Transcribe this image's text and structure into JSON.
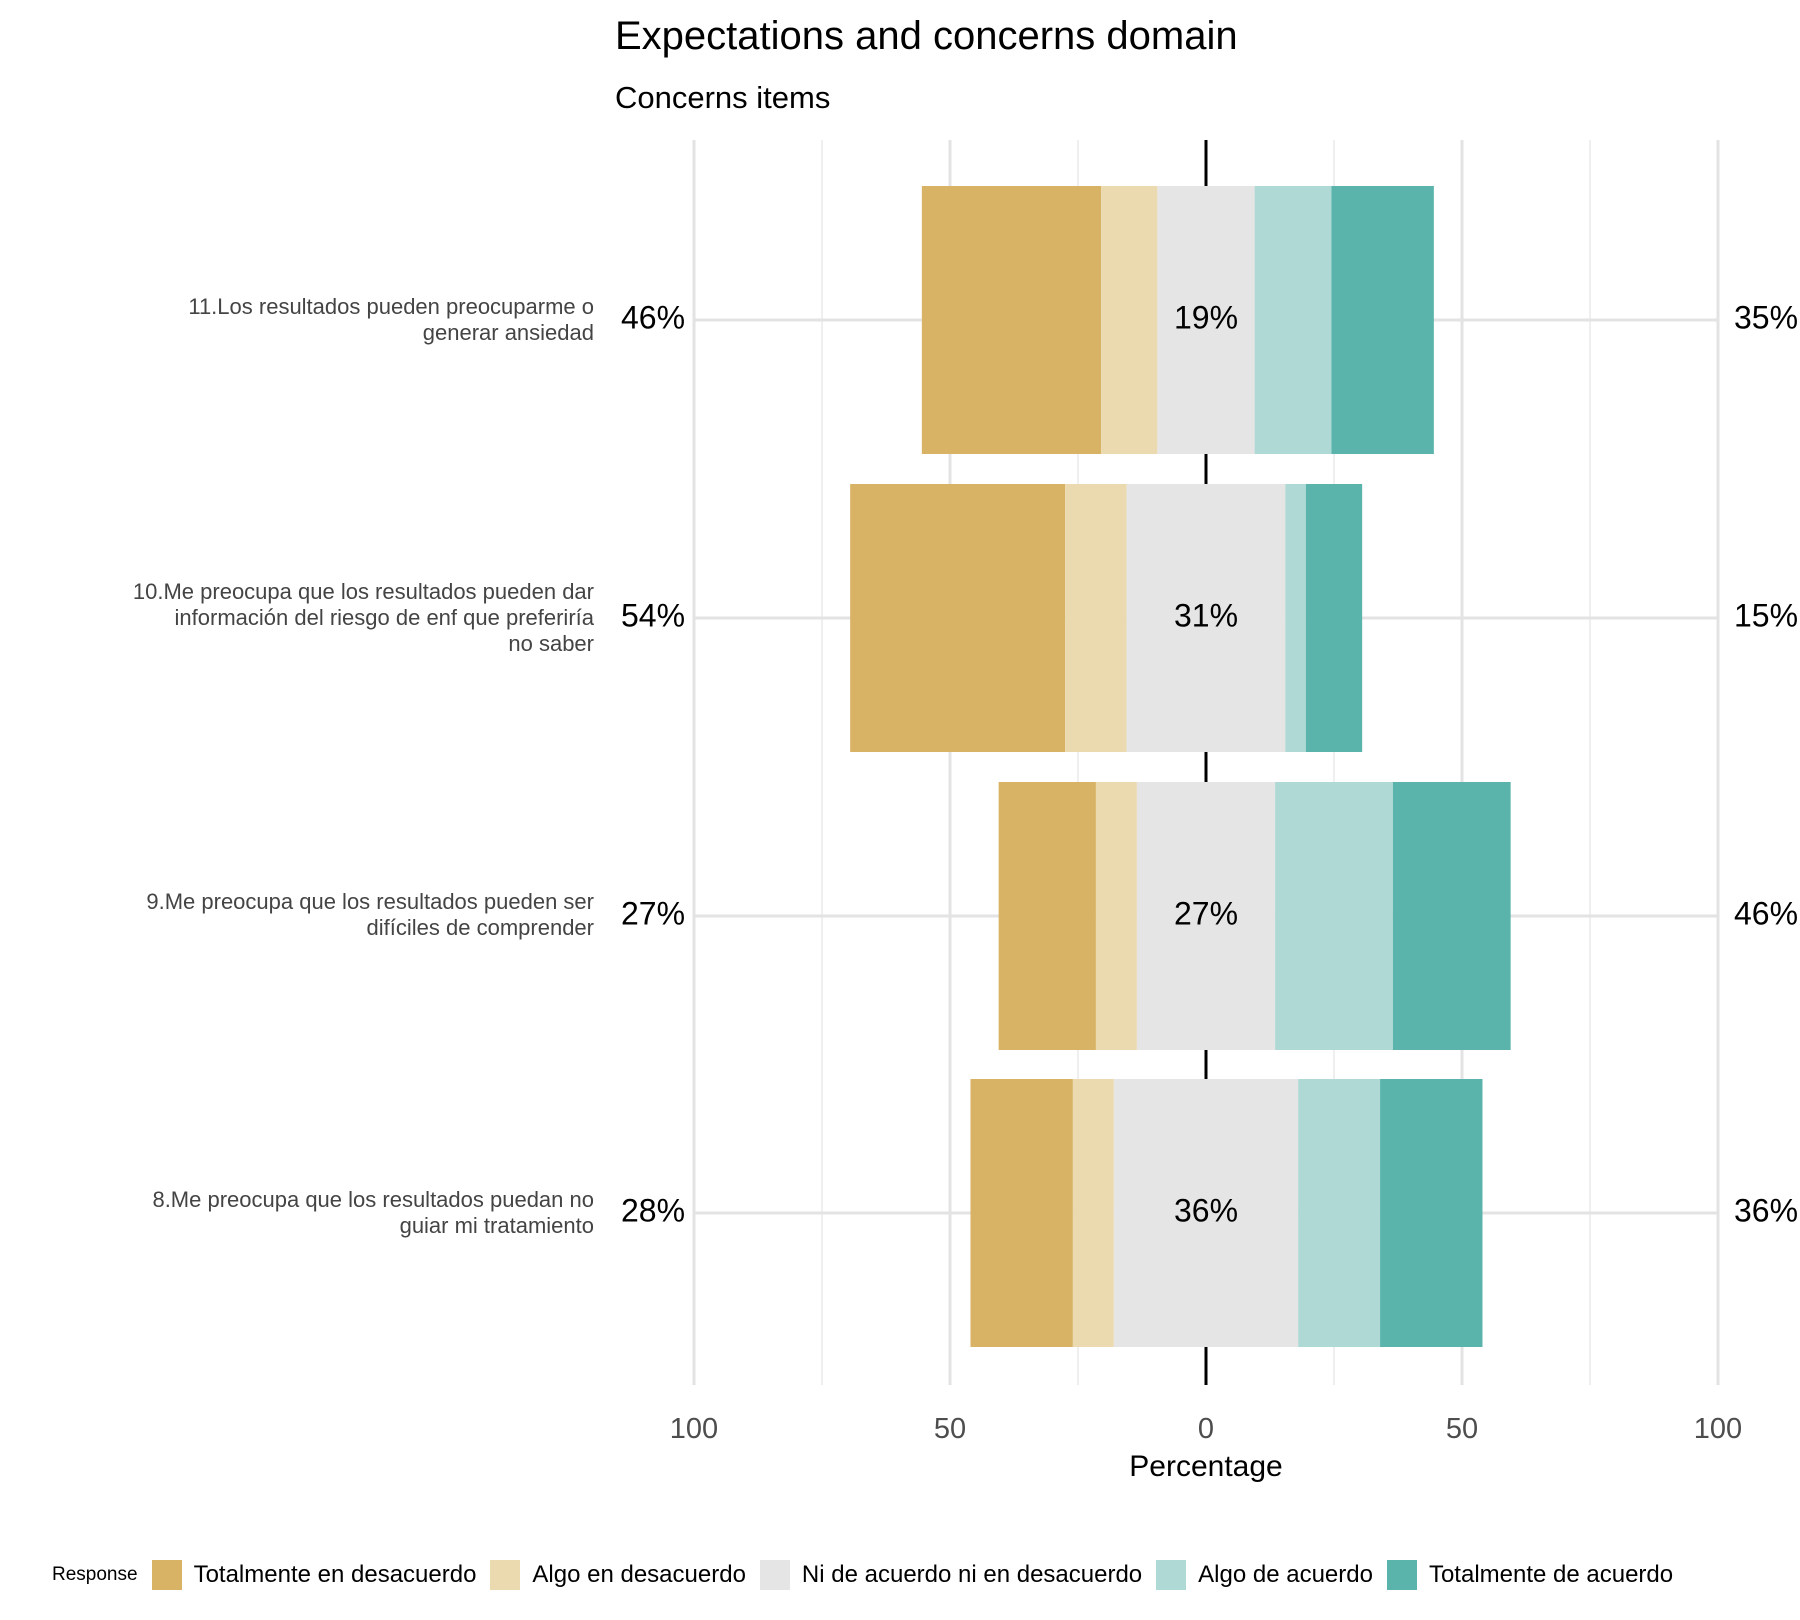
{
  "chart_data": {
    "type": "bar",
    "orientation": "horizontal-diverging",
    "title": "Expectations and concerns domain",
    "subtitle": "Concerns items",
    "xlabel": "Percentage",
    "xlim": [
      -100,
      100
    ],
    "x_ticks": [
      -100,
      -50,
      0,
      50,
      100
    ],
    "x_tick_labels": [
      "100",
      "50",
      "0",
      "50",
      "100"
    ],
    "grid": true,
    "legend_title": "Response",
    "legend_position": "bottom",
    "categories": [
      "11.Los resultados pueden preocuparme o generar ansiedad",
      "10.Me preocupa que los resultados pueden dar información del riesgo de enf que preferiría no saber",
      "9.Me preocupa que los resultados pueden ser difíciles de comprender",
      "8.Me preocupa que los resultados puedan no guiar mi tratamiento"
    ],
    "category_lines": [
      [
        "11.Los resultados pueden preocuparme o",
        "generar ansiedad"
      ],
      [
        "10.Me preocupa que los resultados pueden dar",
        "información del riesgo de enf que preferiría",
        "no saber"
      ],
      [
        "9.Me preocupa que los resultados pueden ser",
        "difíciles de comprender"
      ],
      [
        "8.Me preocupa que los resultados puedan no",
        "guiar mi tratamiento"
      ]
    ],
    "series": [
      {
        "name": "Totalmente en desacuerdo",
        "color": "#D8B365",
        "values": [
          35,
          42,
          19,
          20
        ]
      },
      {
        "name": "Algo en desacuerdo",
        "color": "#EBDAB0",
        "values": [
          11,
          12,
          8,
          8
        ]
      },
      {
        "name": "Ni de acuerdo ni en desacuerdo",
        "color": "#E5E5E5",
        "values": [
          19,
          31,
          27,
          36
        ]
      },
      {
        "name": "Algo de acuerdo",
        "color": "#AED9D4",
        "values": [
          15,
          4,
          23,
          16
        ]
      },
      {
        "name": "Totalmente de acuerdo",
        "color": "#5AB4AC",
        "values": [
          20,
          11,
          23,
          20
        ]
      }
    ],
    "left_labels": [
      "46%",
      "54%",
      "27%",
      "28%"
    ],
    "center_labels": [
      "19%",
      "31%",
      "27%",
      "36%"
    ],
    "right_labels": [
      "35%",
      "15%",
      "46%",
      "36%"
    ]
  }
}
